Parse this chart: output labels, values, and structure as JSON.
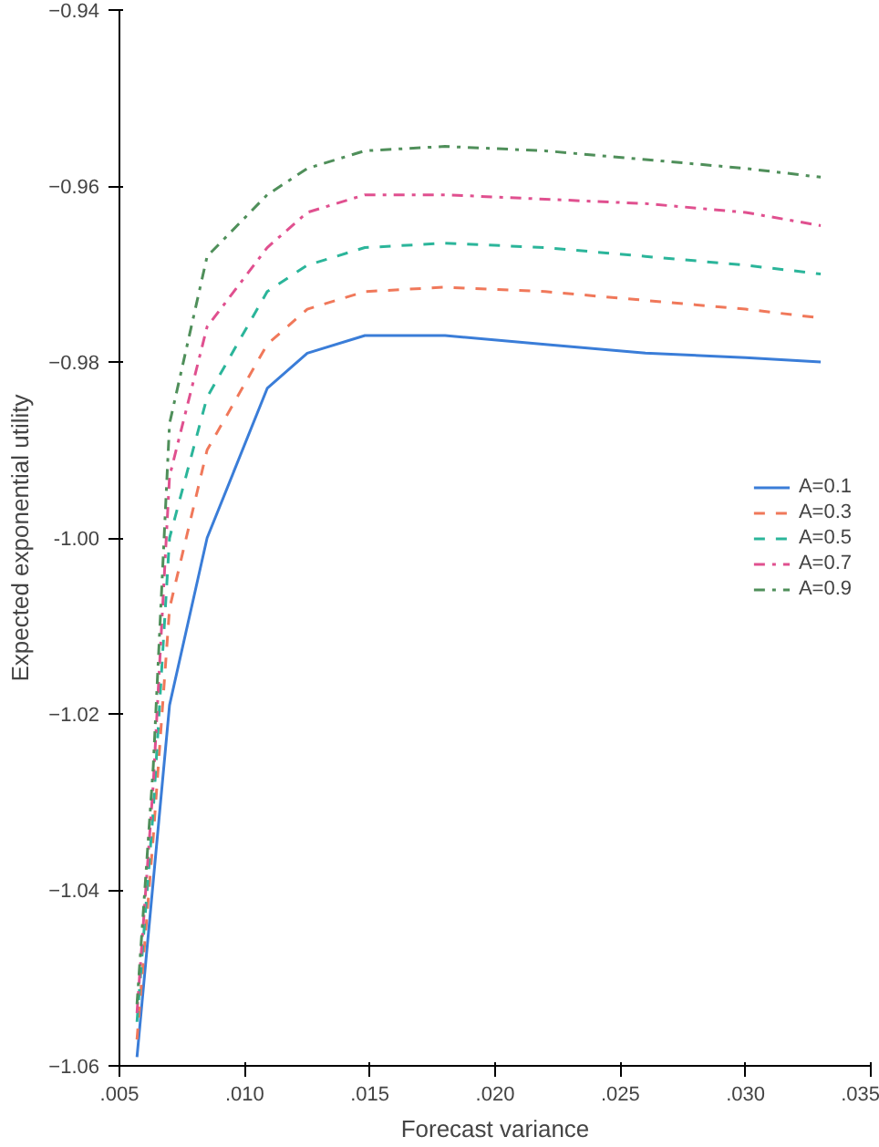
{
  "chart_data": {
    "type": "line",
    "xlabel": "Forecast variance",
    "ylabel": "Expected exponential utility",
    "xlim": [
      0.005,
      0.035
    ],
    "ylim": [
      -1.06,
      -0.94
    ],
    "xticks": [
      {
        "value": 0.005,
        "label": ".005"
      },
      {
        "value": 0.01,
        "label": ".010"
      },
      {
        "value": 0.015,
        "label": ".015"
      },
      {
        "value": 0.02,
        "label": ".020"
      },
      {
        "value": 0.025,
        "label": ".025"
      },
      {
        "value": 0.03,
        "label": ".030"
      },
      {
        "value": 0.035,
        "label": ".035"
      }
    ],
    "yticks": [
      -1.06,
      -1.04,
      -1.02,
      {
        "value": -1.0,
        "label": "-1.00"
      },
      -0.98,
      -0.96,
      -0.94
    ],
    "x": [
      0.0057,
      0.00635,
      0.007,
      0.0085,
      0.0109,
      0.0125,
      0.0148,
      0.018,
      0.022,
      0.026,
      0.03,
      0.033
    ],
    "series": [
      {
        "name": "A=0.1",
        "color": "#3a7dd8",
        "line_style": "solid",
        "values": [
          -1.059,
          -1.039,
          -1.019,
          -1.0,
          -0.983,
          -0.979,
          -0.977,
          -0.977,
          -0.978,
          -0.979,
          -0.9795,
          -0.98
        ]
      },
      {
        "name": "A=0.3",
        "color": "#f0785a",
        "line_style": "dashed",
        "values": [
          -1.057,
          -1.034,
          -1.008,
          -0.99,
          -0.978,
          -0.974,
          -0.972,
          -0.9715,
          -0.972,
          -0.973,
          -0.974,
          -0.975
        ]
      },
      {
        "name": "A=0.5",
        "color": "#2bb59a",
        "line_style": "dashed",
        "values": [
          -1.055,
          -1.031,
          -1.0,
          -0.984,
          -0.972,
          -0.969,
          -0.967,
          -0.9665,
          -0.967,
          -0.968,
          -0.969,
          -0.97
        ]
      },
      {
        "name": "A=0.7",
        "color": "#e0508f",
        "line_style": "dashdot",
        "values": [
          -1.054,
          -1.028,
          -0.993,
          -0.976,
          -0.967,
          -0.963,
          -0.961,
          -0.961,
          -0.9615,
          -0.962,
          -0.963,
          -0.9645
        ]
      },
      {
        "name": "A=0.9",
        "color": "#4f8f5a",
        "line_style": "dashdot",
        "values": [
          -1.053,
          -1.026,
          -0.987,
          -0.968,
          -0.961,
          -0.958,
          -0.956,
          -0.9555,
          -0.956,
          -0.957,
          -0.958,
          -0.959
        ]
      }
    ],
    "legend": "right",
    "grid": false
  }
}
